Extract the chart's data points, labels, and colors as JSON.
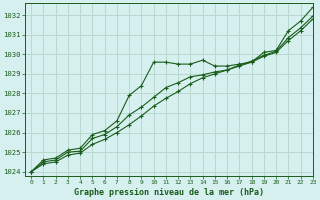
{
  "title": "Graphe pression niveau de la mer (hPa)",
  "bg_color": "#d6f0f0",
  "grid_color": "#b8d8d0",
  "line_color": "#1a5c1a",
  "xlim": [
    -0.5,
    23
  ],
  "ylim": [
    1023.8,
    1032.6
  ],
  "yticks": [
    1024,
    1025,
    1026,
    1027,
    1028,
    1029,
    1030,
    1031,
    1032
  ],
  "xticks": [
    0,
    1,
    2,
    3,
    4,
    5,
    6,
    7,
    8,
    9,
    10,
    11,
    12,
    13,
    14,
    15,
    16,
    17,
    18,
    19,
    20,
    21,
    22,
    23
  ],
  "series1": [
    1024.0,
    1024.6,
    1024.7,
    1025.1,
    1025.2,
    1025.9,
    1026.1,
    1026.6,
    1027.9,
    1028.4,
    1029.6,
    1029.6,
    1029.5,
    1029.5,
    1029.7,
    1029.4,
    1029.4,
    1029.5,
    1029.6,
    1030.1,
    1030.2,
    1031.2,
    1031.7,
    1032.4
  ],
  "series2": [
    1024.0,
    1024.5,
    1024.6,
    1025.0,
    1025.05,
    1025.7,
    1025.9,
    1026.3,
    1026.9,
    1027.3,
    1027.8,
    1028.3,
    1028.55,
    1028.85,
    1028.95,
    1029.1,
    1029.2,
    1029.45,
    1029.65,
    1029.95,
    1030.15,
    1030.85,
    1031.35,
    1031.95
  ],
  "series3": [
    1024.0,
    1024.4,
    1024.5,
    1024.85,
    1024.95,
    1025.4,
    1025.65,
    1026.0,
    1026.4,
    1026.85,
    1027.35,
    1027.75,
    1028.1,
    1028.5,
    1028.8,
    1029.0,
    1029.2,
    1029.4,
    1029.6,
    1029.9,
    1030.1,
    1030.7,
    1031.2,
    1031.8
  ]
}
